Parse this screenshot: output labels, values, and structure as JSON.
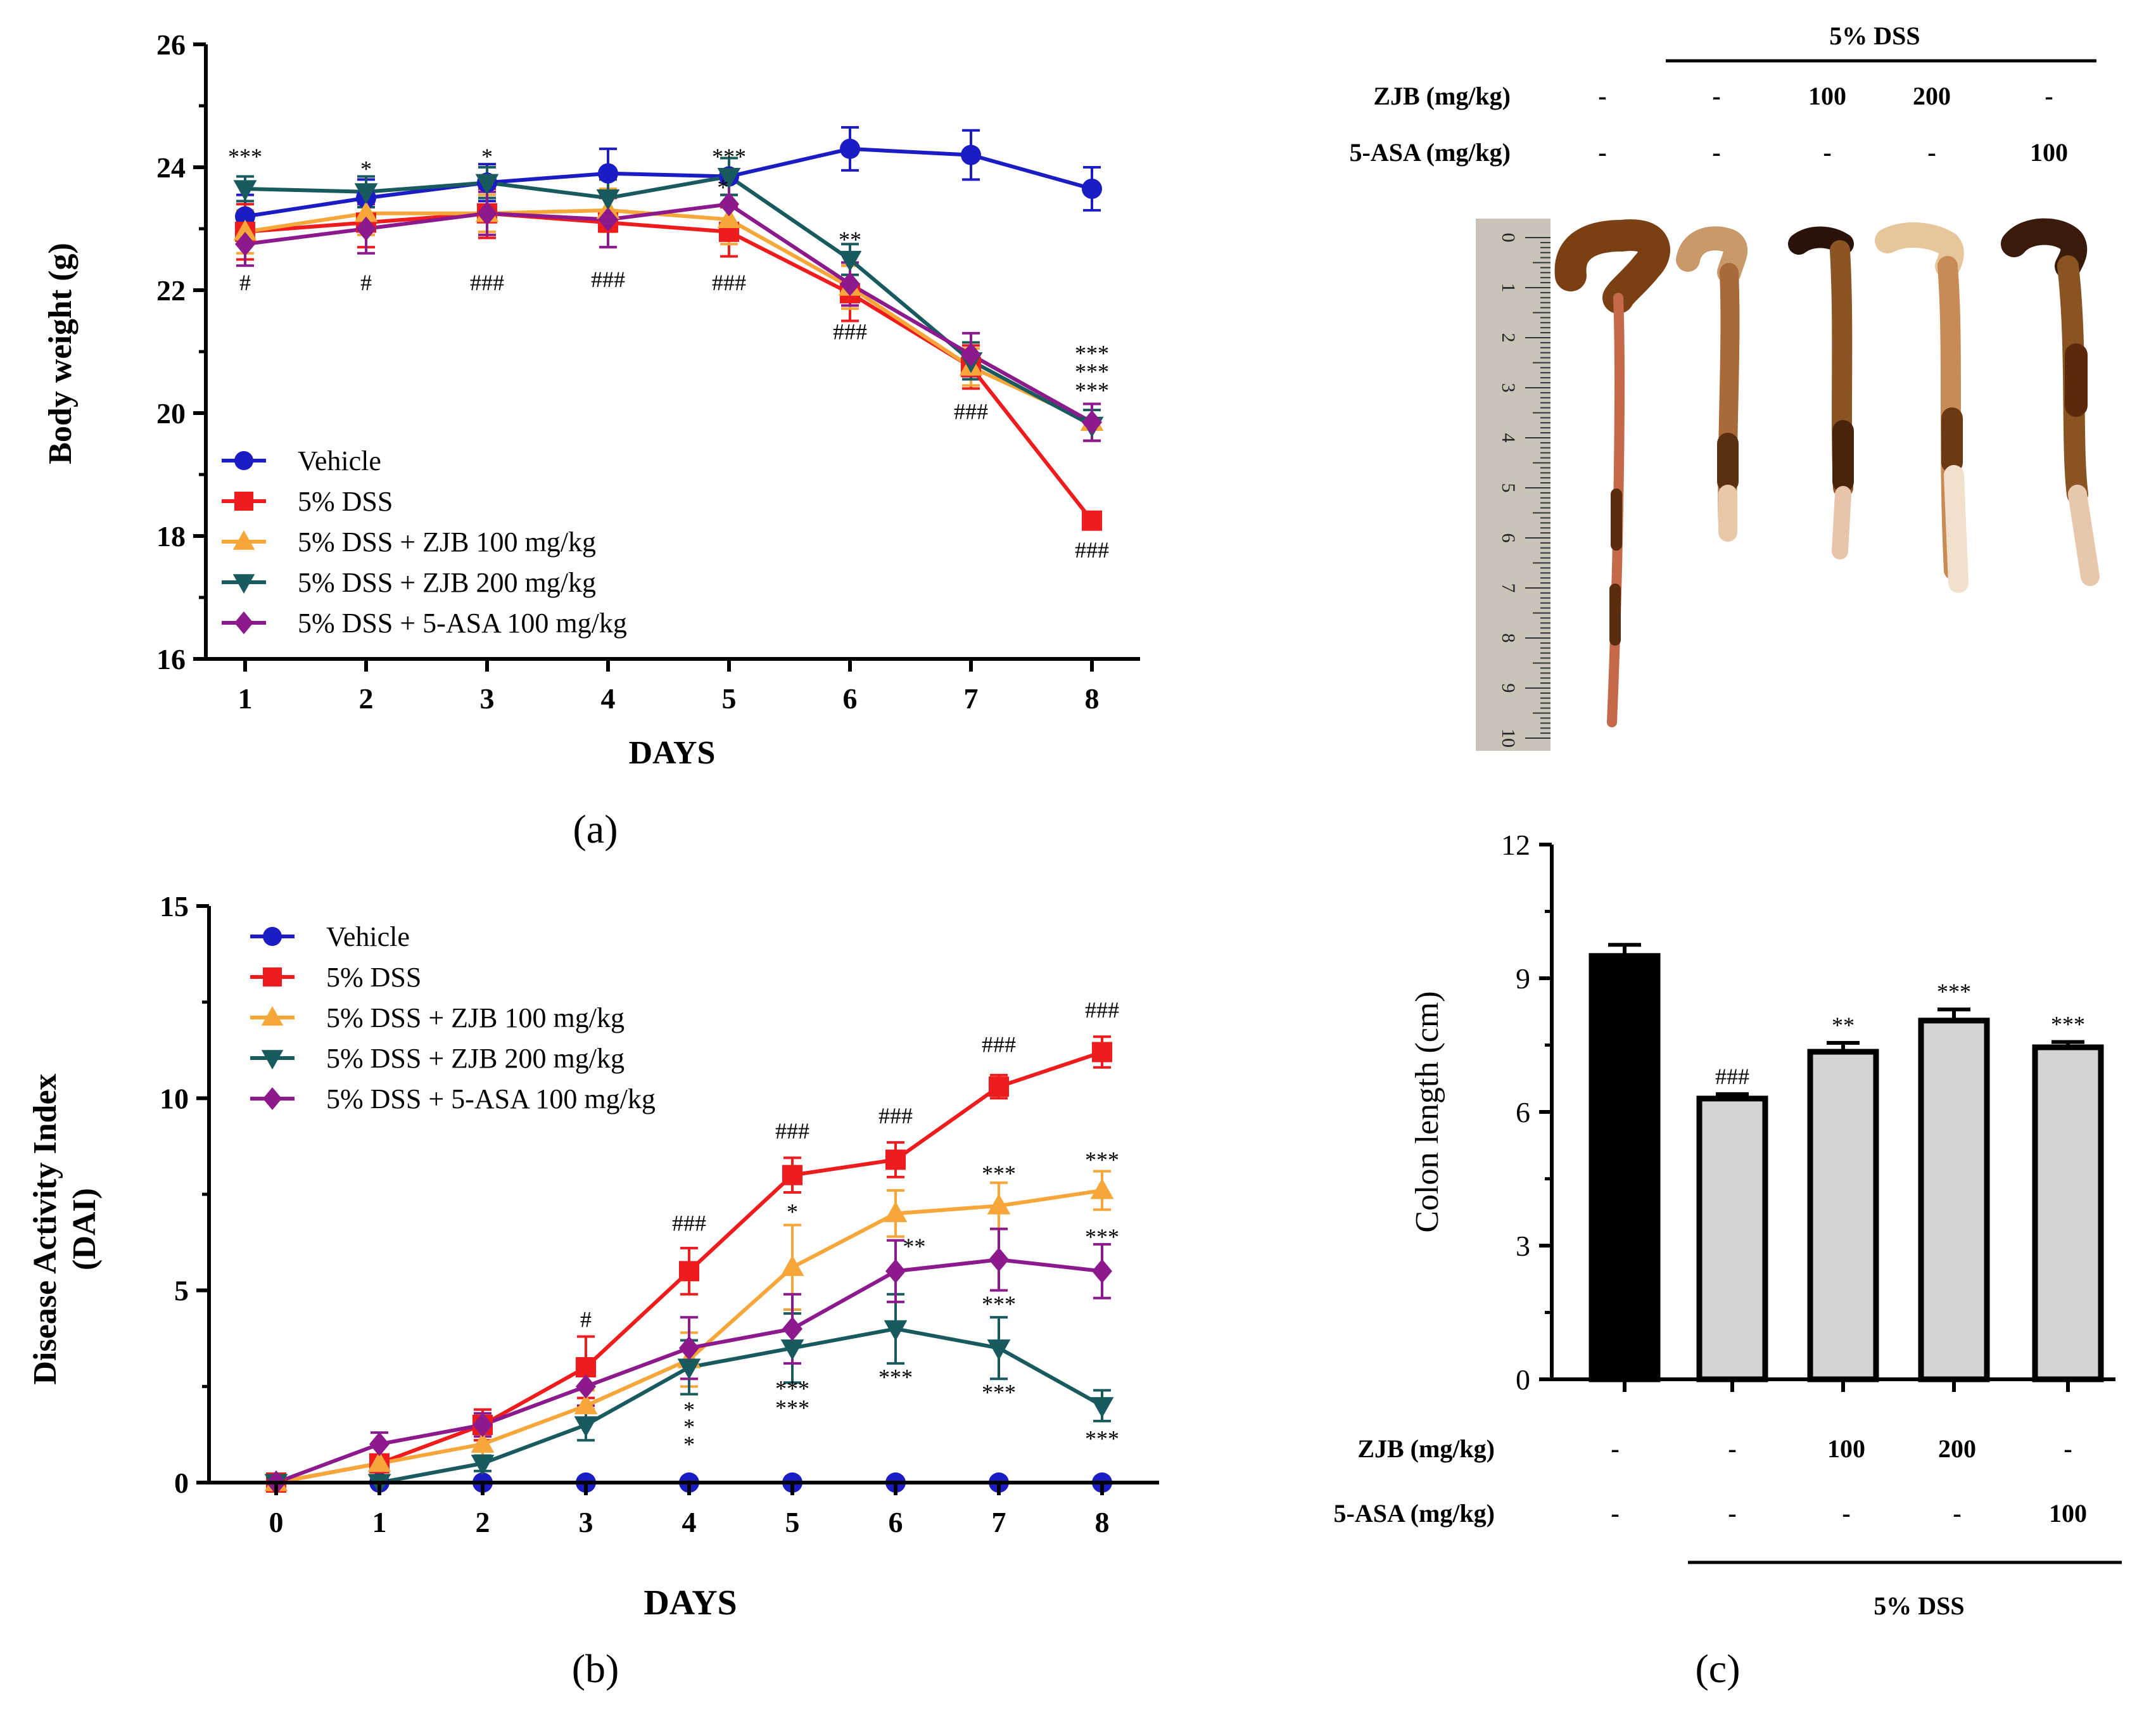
{
  "colors": {
    "vehicle": "#1c1cc4",
    "dss": "#ee1c1c",
    "zjb100": "#f7a63a",
    "zjb200": "#185a5e",
    "asa": "#8c1a8c",
    "bar_vehicle": "#000000",
    "bar_grey": "#d4d4d4"
  },
  "panel_labels": {
    "a": "(a)",
    "b": "(b)",
    "c": "(c)"
  },
  "chart_data": [
    {
      "id": "a",
      "type": "line",
      "title": "",
      "xlabel": "DAYS",
      "ylabel": "Body weight (g)",
      "x": [
        1,
        2,
        3,
        4,
        5,
        6,
        7,
        8
      ],
      "xticks": [
        "1",
        "2",
        "3",
        "4",
        "5",
        "6",
        "7",
        "8"
      ],
      "yticks": [
        "16",
        "18",
        "20",
        "22",
        "24",
        "26"
      ],
      "ylim": [
        16,
        26
      ],
      "legend_position": "bottom-left",
      "series": [
        {
          "name": "Vehicle",
          "marker": "circle",
          "color_key": "vehicle",
          "values": [
            23.2,
            23.5,
            23.75,
            23.9,
            23.85,
            24.3,
            24.2,
            23.65
          ],
          "errors": [
            0.35,
            0.3,
            0.3,
            0.4,
            0.3,
            0.35,
            0.4,
            0.35
          ]
        },
        {
          "name": "5% DSS",
          "marker": "square",
          "color_key": "dss",
          "values": [
            22.95,
            23.1,
            23.25,
            23.1,
            22.95,
            21.95,
            20.75,
            18.25
          ],
          "errors": [
            0.45,
            0.4,
            0.4,
            0.4,
            0.4,
            0.45,
            0.35,
            0.1
          ]
        },
        {
          "name": "5% DSS + ZJB 100 mg/kg",
          "marker": "triangle-up",
          "color_key": "zjb100",
          "values": [
            22.95,
            23.25,
            23.25,
            23.3,
            23.15,
            22.05,
            20.75,
            19.85
          ],
          "errors": [
            0.35,
            0.35,
            0.3,
            0.35,
            0.4,
            0.35,
            0.3,
            0.3
          ]
        },
        {
          "name": "5% DSS + ZJB 200 mg/kg",
          "marker": "triangle-down",
          "color_key": "zjb200",
          "values": [
            23.65,
            23.6,
            23.75,
            23.5,
            23.85,
            22.5,
            20.85,
            19.8
          ],
          "errors": [
            0.2,
            0.25,
            0.25,
            0.3,
            0.3,
            0.25,
            0.3,
            0.25
          ]
        },
        {
          "name": "5% DSS + 5-ASA 100 mg/kg",
          "marker": "diamond",
          "color_key": "asa",
          "values": [
            22.75,
            23.0,
            23.25,
            23.15,
            23.4,
            22.1,
            20.95,
            19.85
          ],
          "errors": [
            0.35,
            0.4,
            0.35,
            0.45,
            0.35,
            0.35,
            0.35,
            0.3
          ]
        }
      ],
      "annotations": [
        {
          "day": 1,
          "y": 24.05,
          "text": "***"
        },
        {
          "day": 1,
          "y": 22.0,
          "text": "#"
        },
        {
          "day": 2,
          "y": 23.85,
          "text": "*"
        },
        {
          "day": 2,
          "y": 22.0,
          "text": "#"
        },
        {
          "day": 3,
          "y": 24.05,
          "text": "*"
        },
        {
          "day": 3,
          "y": 22.0,
          "text": "###"
        },
        {
          "day": 4,
          "y": 22.05,
          "text": "###"
        },
        {
          "day": 5,
          "y": 24.05,
          "text": "***"
        },
        {
          "day": 4.95,
          "y": 23.55,
          "text": "*"
        },
        {
          "day": 5,
          "y": 22.0,
          "text": "###"
        },
        {
          "day": 6,
          "y": 22.7,
          "text": "**"
        },
        {
          "day": 6,
          "y": 21.2,
          "text": "###"
        },
        {
          "day": 7,
          "y": 19.9,
          "text": "###"
        },
        {
          "day": 8,
          "y": 20.85,
          "text": "***"
        },
        {
          "day": 8,
          "y": 20.55,
          "text": "***"
        },
        {
          "day": 8,
          "y": 20.25,
          "text": "***"
        },
        {
          "day": 8,
          "y": 17.65,
          "text": "###"
        }
      ]
    },
    {
      "id": "b",
      "type": "line",
      "title": "",
      "xlabel": "DAYS",
      "ylabel": [
        "Disease Activity Index",
        "(DAI)"
      ],
      "x": [
        0,
        1,
        2,
        3,
        4,
        5,
        6,
        7,
        8
      ],
      "xticks": [
        "0",
        "1",
        "2",
        "3",
        "4",
        "5",
        "6",
        "7",
        "8"
      ],
      "yticks": [
        "0",
        "5",
        "10",
        "15"
      ],
      "ylim": [
        0,
        15
      ],
      "legend_position": "top-left",
      "series": [
        {
          "name": "Vehicle",
          "marker": "circle",
          "color_key": "vehicle",
          "values": [
            0,
            0,
            0,
            0,
            0,
            0,
            0,
            0,
            0
          ],
          "errors": [
            0,
            0,
            0,
            0,
            0,
            0,
            0,
            0,
            0
          ]
        },
        {
          "name": "5% DSS",
          "marker": "square",
          "color_key": "dss",
          "values": [
            0,
            0.5,
            1.5,
            3.0,
            5.5,
            8.0,
            8.4,
            10.3,
            11.2
          ],
          "errors": [
            0,
            0.2,
            0.4,
            0.8,
            0.6,
            0.45,
            0.45,
            0.3,
            0.4
          ]
        },
        {
          "name": "5% DSS + ZJB 100 mg/kg",
          "marker": "triangle-up",
          "color_key": "zjb100",
          "values": [
            0,
            0.5,
            1.0,
            2.0,
            3.2,
            5.6,
            7.0,
            7.2,
            7.6
          ],
          "errors": [
            0,
            0.2,
            0.3,
            0.4,
            0.7,
            1.1,
            0.6,
            0.6,
            0.5
          ]
        },
        {
          "name": "5% DSS + ZJB  200 mg/kg",
          "marker": "triangle-down",
          "color_key": "zjb200",
          "values": [
            0,
            0,
            0.5,
            1.5,
            3.0,
            3.5,
            4.0,
            3.5,
            2.0
          ],
          "errors": [
            0,
            0,
            0.2,
            0.4,
            0.7,
            0.9,
            0.9,
            0.8,
            0.4
          ]
        },
        {
          "name": "5% DSS + 5-ASA 100 mg/kg",
          "marker": "diamond",
          "color_key": "asa",
          "values": [
            0,
            1.0,
            1.5,
            2.5,
            3.5,
            4.0,
            5.5,
            5.8,
            5.5
          ],
          "errors": [
            0,
            0.3,
            0.3,
            0.5,
            0.8,
            0.9,
            0.8,
            0.8,
            0.7
          ]
        }
      ],
      "annotations": [
        {
          "day": 3,
          "y": 4.05,
          "text": "#"
        },
        {
          "day": 4,
          "y": 6.55,
          "text": "###"
        },
        {
          "day": 4,
          "y": 1.7,
          "text": "*"
        },
        {
          "day": 4,
          "y": 1.25,
          "text": "*"
        },
        {
          "day": 4,
          "y": 0.8,
          "text": "*"
        },
        {
          "day": 5,
          "y": 8.95,
          "text": "###"
        },
        {
          "day": 5,
          "y": 6.85,
          "text": "*"
        },
        {
          "day": 5,
          "y": 2.25,
          "text": "***"
        },
        {
          "day": 5,
          "y": 1.75,
          "text": "***"
        },
        {
          "day": 6,
          "y": 9.35,
          "text": "###"
        },
        {
          "day": 6.18,
          "y": 5.95,
          "text": "**"
        },
        {
          "day": 6,
          "y": 2.55,
          "text": "***"
        },
        {
          "day": 7,
          "y": 11.2,
          "text": "###"
        },
        {
          "day": 7,
          "y": 7.85,
          "text": "***"
        },
        {
          "day": 7,
          "y": 4.45,
          "text": "***"
        },
        {
          "day": 7,
          "y": 2.15,
          "text": "***"
        },
        {
          "day": 8,
          "y": 12.1,
          "text": "###"
        },
        {
          "day": 8,
          "y": 8.2,
          "text": "***"
        },
        {
          "day": 8,
          "y": 6.2,
          "text": "***"
        },
        {
          "day": 8,
          "y": 0.95,
          "text": "***"
        }
      ]
    },
    {
      "id": "c",
      "type": "bar",
      "title": "",
      "xlabel": "",
      "ylabel": "Colon length (cm)",
      "categories": [
        "Vehicle",
        "5% DSS",
        "5% DSS + ZJB 100",
        "5% DSS + ZJB 200",
        "5% DSS + 5-ASA 100"
      ],
      "values": [
        9.5,
        6.3,
        7.35,
        8.05,
        7.45
      ],
      "errors": [
        0.25,
        0.1,
        0.2,
        0.25,
        0.12
      ],
      "significance": [
        "",
        "###",
        "**",
        "***",
        "***"
      ],
      "fill_keys": [
        "bar_vehicle",
        "bar_grey",
        "bar_grey",
        "bar_grey",
        "bar_grey"
      ],
      "yticks": [
        "0",
        "3",
        "6",
        "9",
        "12"
      ],
      "ylim": [
        0,
        12
      ]
    }
  ],
  "photo_table": {
    "group": "5% DSS",
    "rows": [
      {
        "label": "ZJB (mg/kg)",
        "cells": [
          "-",
          "-",
          "100",
          "200",
          "-"
        ]
      },
      {
        "label": "5-ASA (mg/kg)",
        "cells": [
          "-",
          "-",
          "-",
          "-",
          "100"
        ]
      }
    ]
  },
  "ruler_numbers": [
    "0",
    "1",
    "2",
    "3",
    "4",
    "5",
    "6",
    "7",
    "8",
    "9",
    "10"
  ],
  "bar_table": {
    "group": "5% DSS",
    "rows": [
      {
        "label": "ZJB (mg/kg)",
        "cells": [
          "-",
          "-",
          "100",
          "200",
          "-"
        ]
      },
      {
        "label": "5-ASA (mg/kg)",
        "cells": [
          "-",
          "-",
          "-",
          "-",
          "100"
        ]
      }
    ]
  }
}
